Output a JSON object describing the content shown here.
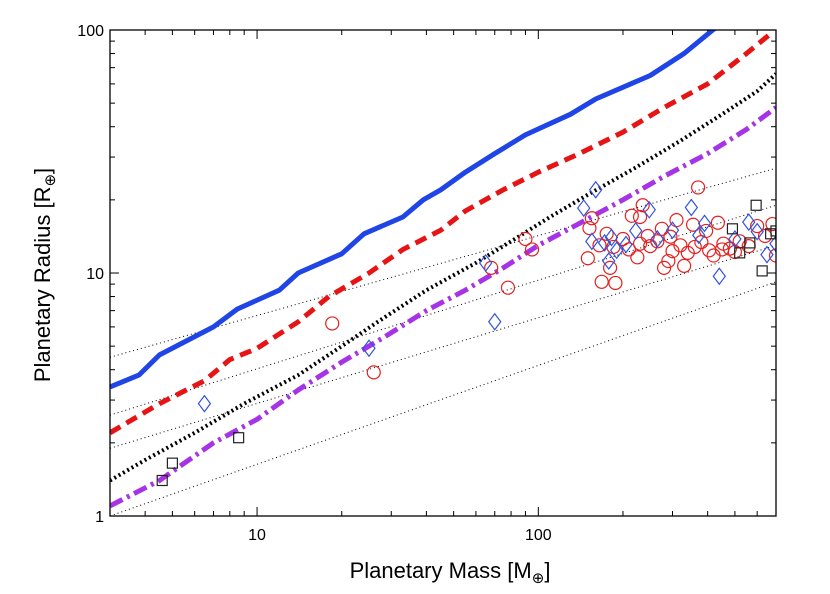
{
  "chart_data": {
    "type": "scatter",
    "title": "",
    "xlabel": "Planetary Mass [M",
    "xlabel_sub": "⊕",
    "xlabel_end": "]",
    "ylabel": "Planetary Radius [R",
    "ylabel_sub": "⊕",
    "ylabel_end": "]",
    "xscale": "log",
    "yscale": "log",
    "xlim": [
      3,
      700
    ],
    "ylim": [
      1,
      100
    ],
    "x_ticks": [
      {
        "value": 10,
        "label": "10"
      },
      {
        "value": 100,
        "label": "100"
      }
    ],
    "y_ticks": [
      {
        "value": 1,
        "label": "1"
      },
      {
        "value": 10,
        "label": "10"
      },
      {
        "value": 100,
        "label": "100"
      }
    ],
    "colors": {
      "blue": "#1f45e6",
      "red": "#e61414",
      "black": "#000000",
      "purple": "#a633e6",
      "diamond": "#3355dd",
      "circle": "#e62020",
      "square": "#222222"
    },
    "reference_lines": [
      {
        "name": "dotted-ref-1",
        "points": [
          [
            3,
            4.5
          ],
          [
            700,
            27
          ]
        ]
      },
      {
        "name": "dotted-ref-2",
        "points": [
          [
            3,
            2.6
          ],
          [
            700,
            19
          ]
        ]
      },
      {
        "name": "dotted-ref-3",
        "points": [
          [
            3,
            1.9
          ],
          [
            700,
            13
          ]
        ]
      },
      {
        "name": "dotted-ref-4",
        "points": [
          [
            3,
            1.0
          ],
          [
            700,
            9.2
          ]
        ]
      }
    ],
    "series": [
      {
        "name": "solid-blue",
        "style": "solid",
        "color": "#1f45e6",
        "width": 5,
        "points": [
          [
            3,
            3.4
          ],
          [
            3.8,
            3.8
          ],
          [
            4.5,
            4.6
          ],
          [
            7,
            6
          ],
          [
            8.5,
            7.1
          ],
          [
            12,
            8.5
          ],
          [
            14,
            10
          ],
          [
            20,
            12
          ],
          [
            24,
            14.5
          ],
          [
            33,
            17
          ],
          [
            39,
            20
          ],
          [
            45,
            22
          ],
          [
            55,
            26
          ],
          [
            70,
            31
          ],
          [
            90,
            37
          ],
          [
            130,
            45
          ],
          [
            160,
            52
          ],
          [
            250,
            65
          ],
          [
            330,
            80
          ],
          [
            430,
            103
          ]
        ]
      },
      {
        "name": "dashed-red",
        "style": "dashed",
        "color": "#e61414",
        "width": 5,
        "points": [
          [
            3,
            2.2
          ],
          [
            4.5,
            2.9
          ],
          [
            6.5,
            3.6
          ],
          [
            8,
            4.4
          ],
          [
            10,
            4.9
          ],
          [
            14,
            6.3
          ],
          [
            18,
            8
          ],
          [
            25,
            10
          ],
          [
            33,
            12.5
          ],
          [
            45,
            15
          ],
          [
            55,
            18
          ],
          [
            75,
            22
          ],
          [
            100,
            26
          ],
          [
            140,
            31
          ],
          [
            200,
            38
          ],
          [
            280,
            48
          ],
          [
            400,
            60
          ],
          [
            550,
            80
          ],
          [
            680,
            98
          ]
        ]
      },
      {
        "name": "dotted-black",
        "style": "dotted",
        "color": "#000000",
        "width": 4,
        "points": [
          [
            3,
            1.4
          ],
          [
            4,
            1.7
          ],
          [
            6,
            2.2
          ],
          [
            9,
            2.9
          ],
          [
            14,
            3.8
          ],
          [
            20,
            5
          ],
          [
            28,
            6.5
          ],
          [
            40,
            8.5
          ],
          [
            60,
            11
          ],
          [
            80,
            13.5
          ],
          [
            110,
            17
          ],
          [
            150,
            21
          ],
          [
            220,
            27
          ],
          [
            320,
            35
          ],
          [
            450,
            45
          ],
          [
            600,
            56
          ],
          [
            700,
            66
          ]
        ]
      },
      {
        "name": "dashdot-purple",
        "style": "dashdot",
        "color": "#a633e6",
        "width": 5,
        "points": [
          [
            3,
            1.1
          ],
          [
            4.5,
            1.4
          ],
          [
            7,
            2
          ],
          [
            10,
            2.5
          ],
          [
            14,
            3.3
          ],
          [
            20,
            4.3
          ],
          [
            28,
            5.4
          ],
          [
            40,
            7
          ],
          [
            55,
            8.5
          ],
          [
            75,
            10.5
          ],
          [
            100,
            13
          ],
          [
            140,
            16
          ],
          [
            200,
            20
          ],
          [
            280,
            25
          ],
          [
            400,
            31
          ],
          [
            550,
            39
          ],
          [
            700,
            48
          ]
        ]
      }
    ],
    "markers": {
      "circles": [
        [
          18.5,
          6.2
        ],
        [
          26,
          3.9
        ],
        [
          68,
          10.5
        ],
        [
          78,
          8.7
        ],
        [
          90,
          13.8
        ],
        [
          95,
          12.5
        ],
        [
          150,
          11.5
        ],
        [
          152,
          15.3
        ],
        [
          155,
          16.8
        ],
        [
          165,
          13
        ],
        [
          168,
          9.2
        ],
        [
          175,
          14.5
        ],
        [
          180,
          10.5
        ],
        [
          185,
          12.8
        ],
        [
          188,
          9.1
        ],
        [
          200,
          13.8
        ],
        [
          210,
          12.5
        ],
        [
          215,
          17.2
        ],
        [
          225,
          11.6
        ],
        [
          230,
          13.2
        ],
        [
          235,
          19
        ],
        [
          245,
          14.2
        ],
        [
          250,
          12.9
        ],
        [
          265,
          13.5
        ],
        [
          275,
          15.2
        ],
        [
          290,
          11.2
        ],
        [
          295,
          14.1
        ],
        [
          300,
          12.3
        ],
        [
          310,
          16.5
        ],
        [
          320,
          13
        ],
        [
          330,
          10.7
        ],
        [
          340,
          12.1
        ],
        [
          355,
          15.8
        ],
        [
          360,
          12.8
        ],
        [
          370,
          22.5
        ],
        [
          380,
          13.4
        ],
        [
          395,
          14.9
        ],
        [
          405,
          12.4
        ],
        [
          420,
          11.8
        ],
        [
          435,
          16.1
        ],
        [
          455,
          13.2
        ],
        [
          480,
          12.6
        ],
        [
          500,
          12.2
        ],
        [
          520,
          13.5
        ],
        [
          560,
          12.9
        ],
        [
          600,
          15.6
        ],
        [
          640,
          14.2
        ],
        [
          680,
          15.9
        ],
        [
          700,
          11.8
        ],
        [
          450,
          12.5
        ],
        [
          280,
          10.5
        ],
        [
          230,
          17
        ]
      ],
      "diamonds": [
        [
          6.5,
          2.9
        ],
        [
          25,
          4.9
        ],
        [
          65,
          11
        ],
        [
          70,
          6.3
        ],
        [
          145,
          18.5
        ],
        [
          155,
          13.5
        ],
        [
          160,
          22
        ],
        [
          172,
          13.3
        ],
        [
          178,
          11.2
        ],
        [
          182,
          14
        ],
        [
          190,
          12.4
        ],
        [
          205,
          13.1
        ],
        [
          222,
          14.9
        ],
        [
          248,
          18.2
        ],
        [
          265,
          13.8
        ],
        [
          300,
          15
        ],
        [
          350,
          18.6
        ],
        [
          372,
          14.3
        ],
        [
          390,
          16
        ],
        [
          440,
          9.7
        ],
        [
          500,
          13.8
        ],
        [
          600,
          14.8
        ],
        [
          650,
          11.9
        ],
        [
          700,
          13.2
        ],
        [
          560,
          16.2
        ]
      ],
      "squares": [
        [
          4.6,
          1.4
        ],
        [
          5.0,
          1.65
        ],
        [
          8.6,
          2.1
        ],
        [
          490,
          15.2
        ],
        [
          520,
          12.1
        ],
        [
          565,
          13.3
        ],
        [
          595,
          19
        ],
        [
          625,
          10.2
        ],
        [
          670,
          14.5
        ],
        [
          700,
          14.9
        ]
      ]
    }
  }
}
